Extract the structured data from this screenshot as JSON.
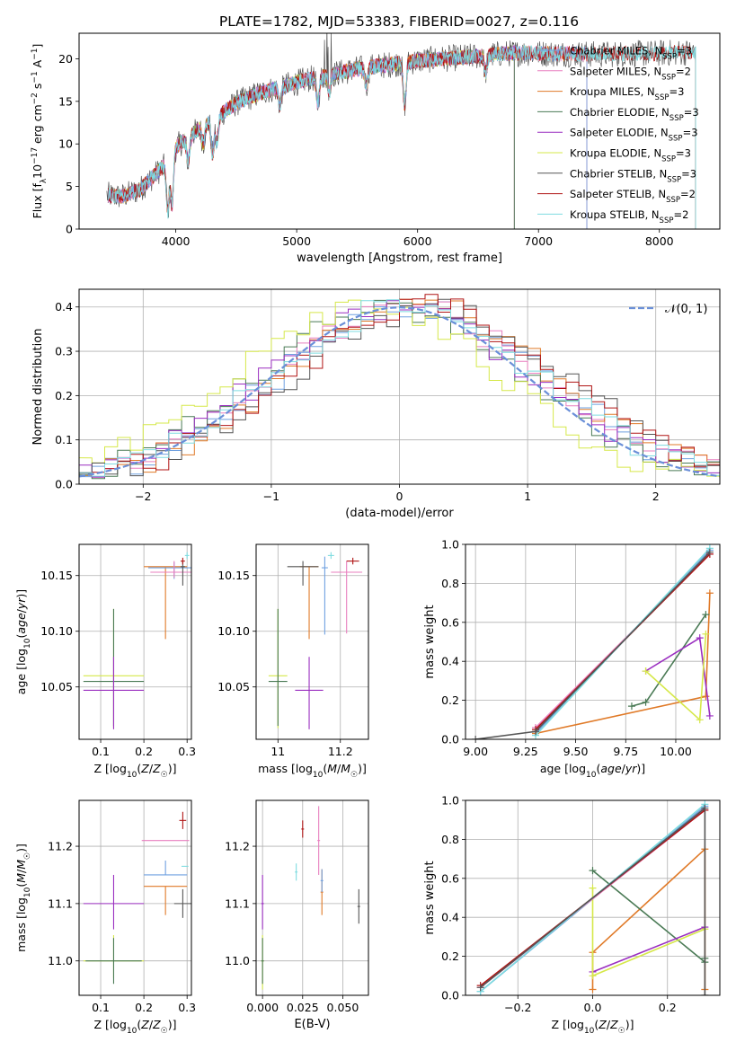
{
  "figure_title": "PLATE=1782, MJD=53383, FIBERID=0027, z=0.116",
  "colors": {
    "chabrier_miles": "#6fa0e0",
    "salpeter_miles": "#e87fbf",
    "kroupa_miles": "#e07a28",
    "chabrier_elodie": "#4a7a55",
    "salpeter_elodie": "#9a2ec0",
    "kroupa_elodie": "#d6e84a",
    "chabrier_stelib": "#555555",
    "salpeter_stelib": "#b01515",
    "kroupa_stelib": "#7fdce0",
    "normal_curve": "#6a8fd8"
  },
  "chart_data": [
    {
      "type": "line",
      "name": "spectrum",
      "xlabel": "wavelength [Angstrom, rest frame]",
      "ylabel": "Flux [f_λ 10^-17 erg cm^-2 s^-1 A^-1]",
      "xlim": [
        3200,
        8500
      ],
      "ylim": [
        0,
        23
      ],
      "xticks": [
        4000,
        5000,
        6000,
        7000,
        8000
      ],
      "yticks": [
        0,
        5,
        10,
        15,
        20
      ],
      "legend_position": "right",
      "legend": [
        {
          "label": "Chabrier MILES, N_SSP=3",
          "base": "Chabrier MILES, N",
          "sub": "SSP",
          "tail": "=3",
          "color_key": "chabrier_miles"
        },
        {
          "label": "Salpeter MILES, N_SSP=2",
          "base": "Salpeter MILES, N",
          "sub": "SSP",
          "tail": "=2",
          "color_key": "salpeter_miles"
        },
        {
          "label": "Kroupa MILES, N_SSP=3",
          "base": "Kroupa MILES, N",
          "sub": "SSP",
          "tail": "=3",
          "color_key": "kroupa_miles"
        },
        {
          "label": "Chabrier ELODIE, N_SSP=3",
          "base": "Chabrier ELODIE, N",
          "sub": "SSP",
          "tail": "=3",
          "color_key": "chabrier_elodie"
        },
        {
          "label": "Salpeter ELODIE, N_SSP=3",
          "base": "Salpeter ELODIE, N",
          "sub": "SSP",
          "tail": "=3",
          "color_key": "salpeter_elodie"
        },
        {
          "label": "Kroupa ELODIE, N_SSP=3",
          "base": "Kroupa ELODIE, N",
          "sub": "SSP",
          "tail": "=3",
          "color_key": "kroupa_elodie"
        },
        {
          "label": "Chabrier STELIB, N_SSP=3",
          "base": "Chabrier STELIB, N",
          "sub": "SSP",
          "tail": "=3",
          "color_key": "chabrier_stelib"
        },
        {
          "label": "Salpeter STELIB, N_SSP=2",
          "base": "Salpeter STELIB, N",
          "sub": "SSP",
          "tail": "=2",
          "color_key": "salpeter_stelib"
        },
        {
          "label": "Kroupa STELIB, N_SSP=2",
          "base": "Kroupa STELIB, N",
          "sub": "SSP",
          "tail": "=2",
          "color_key": "kroupa_stelib"
        }
      ],
      "continuum": {
        "x": [
          3420,
          3550,
          3700,
          3800,
          3900,
          3950,
          4000,
          4100,
          4200,
          4300,
          4400,
          4500,
          4700,
          4900,
          5100,
          5300,
          5500,
          5700,
          5900,
          6100,
          6300,
          6500,
          6700,
          6900,
          7100,
          7300,
          7500,
          7700,
          7900,
          8100,
          8250
        ],
        "y": [
          4.0,
          3.8,
          4.6,
          6.0,
          7.4,
          8.5,
          9.6,
          10.8,
          11.8,
          12.8,
          13.8,
          14.8,
          16.0,
          16.8,
          17.6,
          18.2,
          18.8,
          19.2,
          19.6,
          19.9,
          20.1,
          20.3,
          20.6,
          20.7,
          20.6,
          20.6,
          20.5,
          20.6,
          20.6,
          20.7,
          20.8
        ]
      },
      "absorption_lines": [
        {
          "x": 3934,
          "depth": 6
        },
        {
          "x": 3969,
          "depth": 6
        },
        {
          "x": 4102,
          "depth": 3
        },
        {
          "x": 4227,
          "depth": 2
        },
        {
          "x": 4304,
          "depth": 4
        },
        {
          "x": 4340,
          "depth": 3
        },
        {
          "x": 4861,
          "depth": 2
        },
        {
          "x": 5175,
          "depth": 3
        },
        {
          "x": 5270,
          "depth": 2
        },
        {
          "x": 5577,
          "depth": 2
        },
        {
          "x": 5893,
          "depth": 5
        },
        {
          "x": 6563,
          "depth": 2
        }
      ],
      "series_extent": [
        {
          "key": "chabrier_miles",
          "x_end": 7400
        },
        {
          "key": "salpeter_miles",
          "x_end": 7400
        },
        {
          "key": "kroupa_miles",
          "x_end": 7400
        },
        {
          "key": "chabrier_elodie",
          "x_end": 6800
        },
        {
          "key": "salpeter_elodie",
          "x_end": 6800
        },
        {
          "key": "kroupa_elodie",
          "x_end": 6800
        },
        {
          "key": "chabrier_stelib",
          "x_end": 8300
        },
        {
          "key": "salpeter_stelib",
          "x_end": 8300
        },
        {
          "key": "kroupa_stelib",
          "x_end": 8300
        }
      ]
    },
    {
      "type": "histogram",
      "name": "residuals",
      "xlabel": "(data-model)/error",
      "ylabel": "Normed distribution",
      "xlim": [
        -2.5,
        2.5
      ],
      "ylim": [
        0,
        0.44
      ],
      "xticks": [
        -2,
        -1,
        0,
        1,
        2
      ],
      "yticks": [
        0.0,
        0.1,
        0.2,
        0.3,
        0.4
      ],
      "legend_position": "top-right",
      "normal_curve_label": "𝒩(0, 1)",
      "bin_edges_start": -2.5,
      "bin_width": 0.1,
      "bin_count": 50
    },
    {
      "type": "errorbar",
      "name": "age-vs-Z",
      "xlabel": "Z [log10(Z/Z☉)]",
      "ylabel": "age [log10(age/yr)]",
      "xlim": [
        0.05,
        0.31
      ],
      "ylim": [
        10.003,
        10.178
      ],
      "xticks": [
        0.1,
        0.2,
        0.3
      ],
      "yticks": [
        10.05,
        10.1,
        10.15
      ],
      "points": [
        {
          "key": "kroupa_elodie",
          "x": 0.13,
          "y": 10.06,
          "xerr": 0.07,
          "yerr": [
            0.047,
            0.06
          ]
        },
        {
          "key": "chabrier_elodie",
          "x": 0.13,
          "y": 10.055,
          "xerr": 0.07,
          "yerr": [
            0.04,
            0.065
          ]
        },
        {
          "key": "salpeter_elodie",
          "x": 0.13,
          "y": 10.047,
          "xerr": 0.07,
          "yerr": [
            0.035,
            0.03
          ]
        },
        {
          "key": "kroupa_miles",
          "x": 0.25,
          "y": 10.158,
          "xerr": 0.05,
          "yerr": [
            0.065,
            0.0
          ]
        },
        {
          "key": "chabrier_miles",
          "x": 0.27,
          "y": 10.157,
          "xerr": 0.06,
          "yerr": [
            0.01,
            0.005
          ]
        },
        {
          "key": "salpeter_miles",
          "x": 0.27,
          "y": 10.153,
          "xerr": 0.055,
          "yerr": [
            0.005,
            0.01
          ]
        },
        {
          "key": "chabrier_stelib",
          "x": 0.29,
          "y": 10.158,
          "xerr": 0.005,
          "yerr": [
            0.017,
            0.005
          ]
        },
        {
          "key": "salpeter_stelib",
          "x": 0.29,
          "y": 10.163,
          "xerr": 0.005,
          "yerr": [
            0.003,
            0.003
          ]
        },
        {
          "key": "kroupa_stelib",
          "x": 0.3,
          "y": 10.168,
          "xerr": 0.005,
          "yerr": [
            0.003,
            0.003
          ]
        }
      ]
    },
    {
      "type": "errorbar",
      "name": "age-vs-mass",
      "xlabel": "mass [log10(M/M☉)]",
      "ylabel": "",
      "xlim": [
        10.93,
        11.29
      ],
      "ylim": [
        10.003,
        10.178
      ],
      "xticks": [
        11.0,
        11.2
      ],
      "yticks": [
        10.05,
        10.1,
        10.15
      ],
      "points": [
        {
          "key": "kroupa_elodie",
          "x": 11.0,
          "y": 10.06,
          "xerr": 0.03,
          "yerr": [
            0.047,
            0.06
          ]
        },
        {
          "key": "chabrier_elodie",
          "x": 11.0,
          "y": 10.055,
          "xerr": 0.03,
          "yerr": [
            0.04,
            0.065
          ]
        },
        {
          "key": "salpeter_elodie",
          "x": 11.1,
          "y": 10.047,
          "xerr": 0.045,
          "yerr": [
            0.035,
            0.03
          ]
        },
        {
          "key": "kroupa_miles",
          "x": 11.1,
          "y": 10.158,
          "xerr": 0.03,
          "yerr": [
            0.065,
            0.0
          ]
        },
        {
          "key": "chabrier_miles",
          "x": 11.15,
          "y": 10.157,
          "xerr": 0.01,
          "yerr": [
            0.06,
            0.01
          ]
        },
        {
          "key": "salpeter_miles",
          "x": 11.22,
          "y": 10.153,
          "xerr": 0.05,
          "yerr": [
            0.055,
            0.01
          ]
        },
        {
          "key": "chabrier_stelib",
          "x": 11.08,
          "y": 10.158,
          "xerr": 0.05,
          "yerr": [
            0.017,
            0.005
          ]
        },
        {
          "key": "salpeter_stelib",
          "x": 11.24,
          "y": 10.163,
          "xerr": 0.02,
          "yerr": [
            0.003,
            0.003
          ]
        },
        {
          "key": "kroupa_stelib",
          "x": 11.17,
          "y": 10.168,
          "xerr": 0.01,
          "yerr": [
            0.003,
            0.003
          ]
        }
      ]
    },
    {
      "type": "line",
      "name": "mass-weight-vs-age",
      "xlabel": "age [log10(age/yr)]",
      "ylabel": "mass weight",
      "xlim": [
        8.95,
        10.22
      ],
      "ylim": [
        0,
        1.0
      ],
      "xticks": [
        9.0,
        9.25,
        9.5,
        9.75,
        10.0
      ],
      "xticklabels": [
        "9.00",
        "9.25",
        "9.50",
        "9.75",
        "10.00"
      ],
      "yticks": [
        0.0,
        0.2,
        0.4,
        0.6,
        0.8,
        1.0
      ],
      "series": [
        {
          "key": "chabrier_miles",
          "x": [
            9.3,
            10.17
          ],
          "y": [
            0.03,
            0.97
          ]
        },
        {
          "key": "salpeter_miles",
          "x": [
            9.3,
            10.17
          ],
          "y": [
            0.06,
            0.95
          ]
        },
        {
          "key": "kroupa_miles",
          "x": [
            9.3,
            10.15,
            10.17
          ],
          "y": [
            0.03,
            0.22,
            0.75
          ]
        },
        {
          "key": "chabrier_elodie",
          "x": [
            9.78,
            9.85,
            10.15
          ],
          "y": [
            0.17,
            0.19,
            0.64
          ]
        },
        {
          "key": "salpeter_elodie",
          "x": [
            9.85,
            10.12,
            10.17
          ],
          "y": [
            0.35,
            0.52,
            0.12
          ]
        },
        {
          "key": "kroupa_elodie",
          "x": [
            9.85,
            10.12,
            10.15
          ],
          "y": [
            0.35,
            0.1,
            0.54
          ]
        },
        {
          "key": "chabrier_stelib",
          "x": [
            9.0,
            9.3,
            10.17
          ],
          "y": [
            0.0,
            0.04,
            0.96
          ]
        },
        {
          "key": "salpeter_stelib",
          "x": [
            9.3,
            10.17
          ],
          "y": [
            0.05,
            0.95
          ]
        },
        {
          "key": "kroupa_stelib",
          "x": [
            9.3,
            10.17
          ],
          "y": [
            0.02,
            0.98
          ]
        }
      ]
    },
    {
      "type": "errorbar",
      "name": "mass-vs-Z",
      "xlabel": "Z [log10(Z/Z☉)]",
      "ylabel": "mass [log10(M/M☉)]",
      "xlim": [
        0.05,
        0.31
      ],
      "ylim": [
        10.94,
        11.28
      ],
      "xticks": [
        0.1,
        0.2,
        0.3
      ],
      "yticks": [
        11.0,
        11.1,
        11.2
      ],
      "points": [
        {
          "key": "kroupa_elodie",
          "x": 0.13,
          "y": 11.0,
          "xerr": 0.07,
          "yerr": [
            0.03,
            0.045
          ]
        },
        {
          "key": "chabrier_elodie",
          "x": 0.13,
          "y": 11.0,
          "xerr": 0.065,
          "yerr": [
            0.04,
            0.04
          ]
        },
        {
          "key": "salpeter_elodie",
          "x": 0.13,
          "y": 11.1,
          "xerr": 0.07,
          "yerr": [
            0.045,
            0.05
          ]
        },
        {
          "key": "kroupa_miles",
          "x": 0.25,
          "y": 11.13,
          "xerr": 0.05,
          "yerr": [
            0.05,
            0.0
          ]
        },
        {
          "key": "chabrier_miles",
          "x": 0.25,
          "y": 11.15,
          "xerr": 0.05,
          "yerr": [
            0.0,
            0.025
          ]
        },
        {
          "key": "salpeter_miles",
          "x": 0.25,
          "y": 11.21,
          "xerr": 0.055,
          "yerr": [
            0.0,
            0.0
          ]
        },
        {
          "key": "chabrier_stelib",
          "x": 0.29,
          "y": 11.1,
          "xerr": 0.02,
          "yerr": [
            0.025,
            0.025
          ]
        },
        {
          "key": "salpeter_stelib",
          "x": 0.29,
          "y": 11.245,
          "xerr": 0.008,
          "yerr": [
            0.015,
            0.015
          ]
        },
        {
          "key": "kroupa_stelib",
          "x": 0.295,
          "y": 11.165,
          "xerr": 0.008,
          "yerr": [
            0.0,
            0.0
          ]
        }
      ]
    },
    {
      "type": "errorbar",
      "name": "mass-vs-EBV",
      "xlabel": "E(B-V)",
      "ylabel": "",
      "xlim": [
        -0.004,
        0.066
      ],
      "ylim": [
        10.94,
        11.28
      ],
      "xticks": [
        0.0,
        0.025,
        0.05
      ],
      "xticklabels": [
        "0.000",
        "0.025",
        "0.050"
      ],
      "yticks": [
        11.0,
        11.1,
        11.2
      ],
      "points": [
        {
          "key": "kroupa_elodie",
          "x": 0.0,
          "y": 11.0,
          "xerr": 0.0,
          "yerr": [
            0.05,
            0.045
          ]
        },
        {
          "key": "chabrier_elodie",
          "x": 0.0,
          "y": 11.0,
          "xerr": 0.0,
          "yerr": [
            0.04,
            0.04
          ]
        },
        {
          "key": "salpeter_elodie",
          "x": 0.0,
          "y": 11.1,
          "xerr": 0.0,
          "yerr": [
            0.045,
            0.05
          ]
        },
        {
          "key": "kroupa_miles",
          "x": 0.037,
          "y": 11.12,
          "xerr": 0.0,
          "yerr": [
            0.04,
            0.04
          ]
        },
        {
          "key": "chabrier_miles",
          "x": 0.037,
          "y": 11.14,
          "xerr": 0.0,
          "yerr": [
            0.02,
            0.02
          ]
        },
        {
          "key": "salpeter_miles",
          "x": 0.035,
          "y": 11.21,
          "xerr": 0.0,
          "yerr": [
            0.06,
            0.06
          ]
        },
        {
          "key": "chabrier_stelib",
          "x": 0.06,
          "y": 11.095,
          "xerr": 0.0,
          "yerr": [
            0.03,
            0.03
          ]
        },
        {
          "key": "salpeter_stelib",
          "x": 0.025,
          "y": 11.23,
          "xerr": 0.0,
          "yerr": [
            0.015,
            0.015
          ]
        },
        {
          "key": "kroupa_stelib",
          "x": 0.021,
          "y": 11.155,
          "xerr": 0.0,
          "yerr": [
            0.015,
            0.015
          ]
        }
      ]
    },
    {
      "type": "line",
      "name": "mass-weight-vs-Z",
      "xlabel": "Z [log10(Z/Z☉)]",
      "ylabel": "mass weight",
      "xlim": [
        -0.34,
        0.34
      ],
      "ylim": [
        0,
        1.0
      ],
      "xticks": [
        -0.2,
        0.0,
        0.2
      ],
      "xticklabels": [
        "−0.2",
        "0.0",
        "0.2"
      ],
      "yticks": [
        0.0,
        0.2,
        0.4,
        0.6,
        0.8,
        1.0
      ],
      "series": [
        {
          "key": "chabrier_miles",
          "x": [
            -0.3,
            0.3
          ],
          "y": [
            0.02,
            0.97
          ]
        },
        {
          "key": "salpeter_miles",
          "x": [
            -0.3,
            0.3
          ],
          "y": [
            0.04,
            0.95
          ]
        },
        {
          "key": "kroupa_miles",
          "x": [
            0.0,
            0.0,
            0.3,
            0.3
          ],
          "y": [
            0.03,
            0.22,
            0.75,
            0.03
          ]
        },
        {
          "key": "chabrier_elodie",
          "x": [
            0.0,
            0.3,
            0.3
          ],
          "y": [
            0.64,
            0.17,
            0.19
          ]
        },
        {
          "key": "salpeter_elodie",
          "x": [
            0.0,
            0.3
          ],
          "y": [
            0.12,
            0.35
          ]
        },
        {
          "key": "kroupa_elodie",
          "x": [
            0.0,
            0.0,
            0.3
          ],
          "y": [
            0.55,
            0.1,
            0.34
          ]
        },
        {
          "key": "chabrier_stelib",
          "x": [
            -0.3,
            0.3,
            0.3
          ],
          "y": [
            0.04,
            0.96,
            0.0
          ]
        },
        {
          "key": "salpeter_stelib",
          "x": [
            -0.3,
            0.3
          ],
          "y": [
            0.05,
            0.95
          ]
        },
        {
          "key": "kroupa_stelib",
          "x": [
            -0.3,
            0.3
          ],
          "y": [
            0.02,
            0.98
          ]
        }
      ]
    }
  ]
}
